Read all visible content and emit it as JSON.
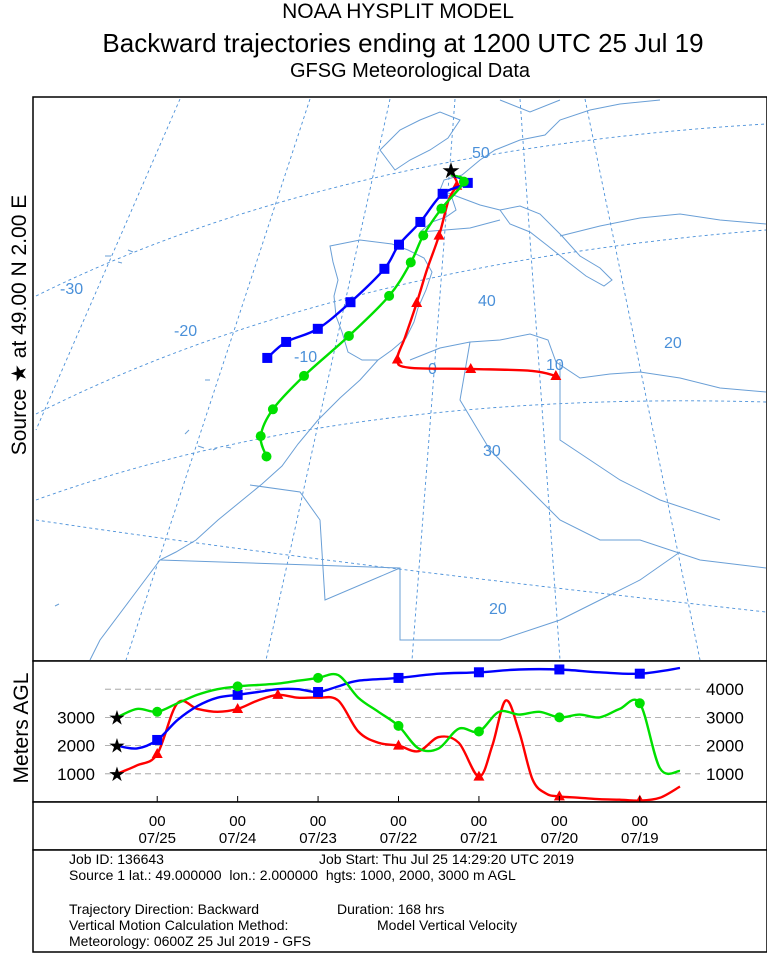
{
  "header": {
    "line1": "NOAA HYSPLIT MODEL",
    "line2": "Backward trajectories ending at 1200 UTC 25 Jul 19",
    "line3": "GFSG Meteorological Data"
  },
  "side_label": "Source ★  at   49.00 N   2.00 E",
  "height_axis_label": "Meters AGL",
  "map": {
    "lat_labels": [
      "50",
      "40",
      "30",
      "20"
    ],
    "lon_labels": [
      "-30",
      "-20",
      "-10",
      "0",
      "10",
      "20"
    ],
    "source": {
      "lat": 49.0,
      "lon": 2.0
    }
  },
  "colors": {
    "red": "#ff0000",
    "blue": "#0000ff",
    "green": "#00e000",
    "grid": "#4a90d9",
    "coast": "#6a9fd6"
  },
  "chart_data": {
    "type": "line",
    "title": "Backward trajectories ending at 1200 UTC 25 Jul 19",
    "xlabel": "",
    "ylabel": "Meters AGL",
    "x_unit": "hours before 1200 UTC 25 Jul 19",
    "xlim": [
      0,
      168
    ],
    "ylim": [
      0,
      5000
    ],
    "y_ticks_left": [
      "3000",
      "2000",
      "1000"
    ],
    "y_ticks_right": [
      "4000",
      "3000",
      "2000",
      "1000"
    ],
    "x_tick_hours": [
      "00",
      "00",
      "00",
      "00",
      "00",
      "00",
      "00"
    ],
    "x_tick_dates": [
      "07/25",
      "07/24",
      "07/23",
      "07/22",
      "07/21",
      "07/20",
      "07/19"
    ],
    "x_tick_positions": [
      12,
      36,
      60,
      84,
      108,
      132,
      156
    ],
    "series": [
      {
        "name": "1000 m AGL",
        "color": "red",
        "marker": "triangle",
        "start_height": 1000,
        "x": [
          0,
          6,
          12,
          18,
          24,
          30,
          36,
          42,
          48,
          54,
          60,
          66,
          72,
          78,
          84,
          90,
          96,
          102,
          108,
          112,
          116,
          120,
          124,
          128,
          132,
          138,
          144,
          150,
          156,
          162,
          168
        ],
        "y": [
          1000,
          1300,
          1700,
          3500,
          3300,
          3200,
          3300,
          3600,
          3800,
          3700,
          3700,
          3600,
          2500,
          2100,
          2000,
          1800,
          2300,
          2100,
          900,
          2000,
          3600,
          2500,
          800,
          300,
          200,
          150,
          100,
          80,
          50,
          150,
          550
        ],
        "marker_x": [
          12,
          36,
          48,
          84,
          108,
          132,
          156
        ],
        "lat": [
          49.0,
          48.8,
          48.2,
          47.2,
          44.5,
          42.0,
          39.5,
          37.0,
          35.3,
          34.7,
          34.6,
          34.4,
          34.0
        ],
        "lon": [
          2.0,
          2.3,
          2.5,
          2.0,
          1.5,
          0.8,
          0.2,
          -0.5,
          -1.0,
          0.0,
          5.0,
          10.0,
          12.0
        ]
      },
      {
        "name": "2000 m AGL",
        "color": "blue",
        "marker": "square",
        "start_height": 2000,
        "x": [
          0,
          6,
          12,
          18,
          24,
          30,
          36,
          42,
          48,
          54,
          60,
          66,
          72,
          84,
          96,
          108,
          120,
          132,
          144,
          156,
          168
        ],
        "y": [
          2000,
          1900,
          2200,
          2900,
          3400,
          3700,
          3800,
          3900,
          4000,
          4000,
          3900,
          4100,
          4300,
          4400,
          4550,
          4600,
          4700,
          4700,
          4600,
          4550,
          4750
        ],
        "marker_x": [
          12,
          36,
          60,
          84,
          108,
          132,
          156
        ],
        "lat": [
          49.0,
          48.4,
          47.6,
          45.5,
          43.8,
          42.0,
          39.5,
          37.5,
          36.5,
          35.3
        ],
        "lon": [
          2.0,
          3.3,
          1.5,
          0.0,
          -1.5,
          -2.5,
          -5.0,
          -7.5,
          -10.0,
          -11.5
        ]
      },
      {
        "name": "3000 m AGL",
        "color": "green",
        "marker": "circle",
        "start_height": 3000,
        "x": [
          0,
          6,
          12,
          18,
          24,
          30,
          36,
          42,
          48,
          54,
          60,
          66,
          72,
          78,
          84,
          90,
          96,
          102,
          108,
          114,
          120,
          126,
          132,
          138,
          144,
          150,
          156,
          162,
          168
        ],
        "y": [
          3000,
          3300,
          3200,
          3500,
          3800,
          4000,
          4100,
          4150,
          4200,
          4300,
          4400,
          4500,
          3700,
          3200,
          2700,
          1900,
          1900,
          2600,
          2500,
          3200,
          3100,
          3200,
          3000,
          3100,
          3000,
          3300,
          3500,
          1200,
          1100
        ],
        "marker_x": [
          12,
          36,
          60,
          84,
          108,
          132,
          156
        ],
        "lat": [
          49.0,
          48.5,
          46.5,
          44.5,
          42.5,
          40.0,
          37.0,
          34.0,
          31.5,
          29.5,
          28.0
        ],
        "lon": [
          2.0,
          3.0,
          1.5,
          0.3,
          -0.5,
          -2.0,
          -5.0,
          -8.5,
          -11.0,
          -12.0,
          -11.5
        ]
      }
    ]
  },
  "info": {
    "job_id": "Job ID: 136643",
    "job_start": "Job Start: Thu Jul 25 14:29:20 UTC 2019",
    "source_line": "Source 1 lat.: 49.000000  lon.: 2.000000  hgts: 1000, 2000, 3000 m AGL",
    "direction": "Trajectory Direction: Backward",
    "duration": "Duration: 168 hrs",
    "vertical_label": "Vertical Motion Calculation Method:",
    "vertical_value": "Model Vertical Velocity",
    "meteorology": "Meteorology: 0600Z 25 Jul 2019 - GFS"
  }
}
